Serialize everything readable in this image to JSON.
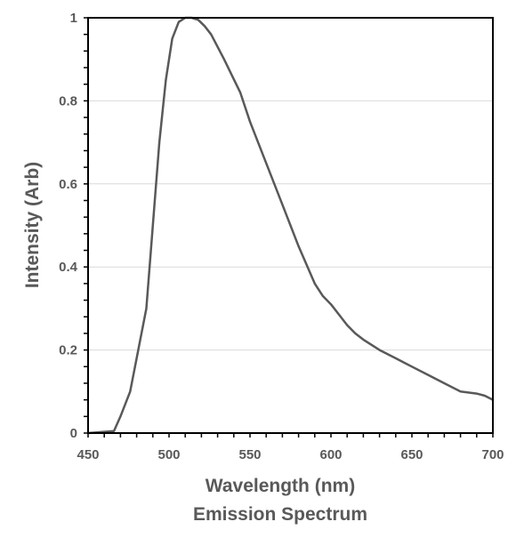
{
  "chart_data": {
    "type": "line",
    "xlabel": "Wavelength (nm)",
    "caption": "Emission Spectrum",
    "ylabel": "Intensity (Arb)",
    "xlim": [
      450,
      700
    ],
    "ylim": [
      0,
      1
    ],
    "x_ticks": [
      "450",
      "500",
      "550",
      "600",
      "650",
      "700"
    ],
    "y_ticks": [
      "0",
      "0.2",
      "0.4",
      "0.6",
      "0.8",
      "1"
    ],
    "grid": true,
    "legend": "none",
    "series": [
      {
        "color": "#595959",
        "x": [
          450,
          466,
          470,
          476,
          481,
          486,
          490,
          494,
          498,
          502,
          506,
          510,
          514,
          518,
          522,
          526,
          530,
          534,
          539,
          544,
          550,
          560,
          570,
          580,
          590,
          595,
          600,
          605,
          610,
          615,
          620,
          630,
          640,
          645,
          650,
          660,
          670,
          680,
          690,
          695,
          700
        ],
        "y": [
          0,
          0.005,
          0.04,
          0.1,
          0.2,
          0.3,
          0.5,
          0.7,
          0.85,
          0.95,
          0.99,
          1.0,
          1.0,
          0.995,
          0.98,
          0.96,
          0.93,
          0.9,
          0.86,
          0.82,
          0.75,
          0.65,
          0.55,
          0.45,
          0.36,
          0.33,
          0.31,
          0.285,
          0.26,
          0.24,
          0.225,
          0.2,
          0.18,
          0.17,
          0.16,
          0.14,
          0.12,
          0.1,
          0.095,
          0.09,
          0.08
        ]
      }
    ]
  }
}
